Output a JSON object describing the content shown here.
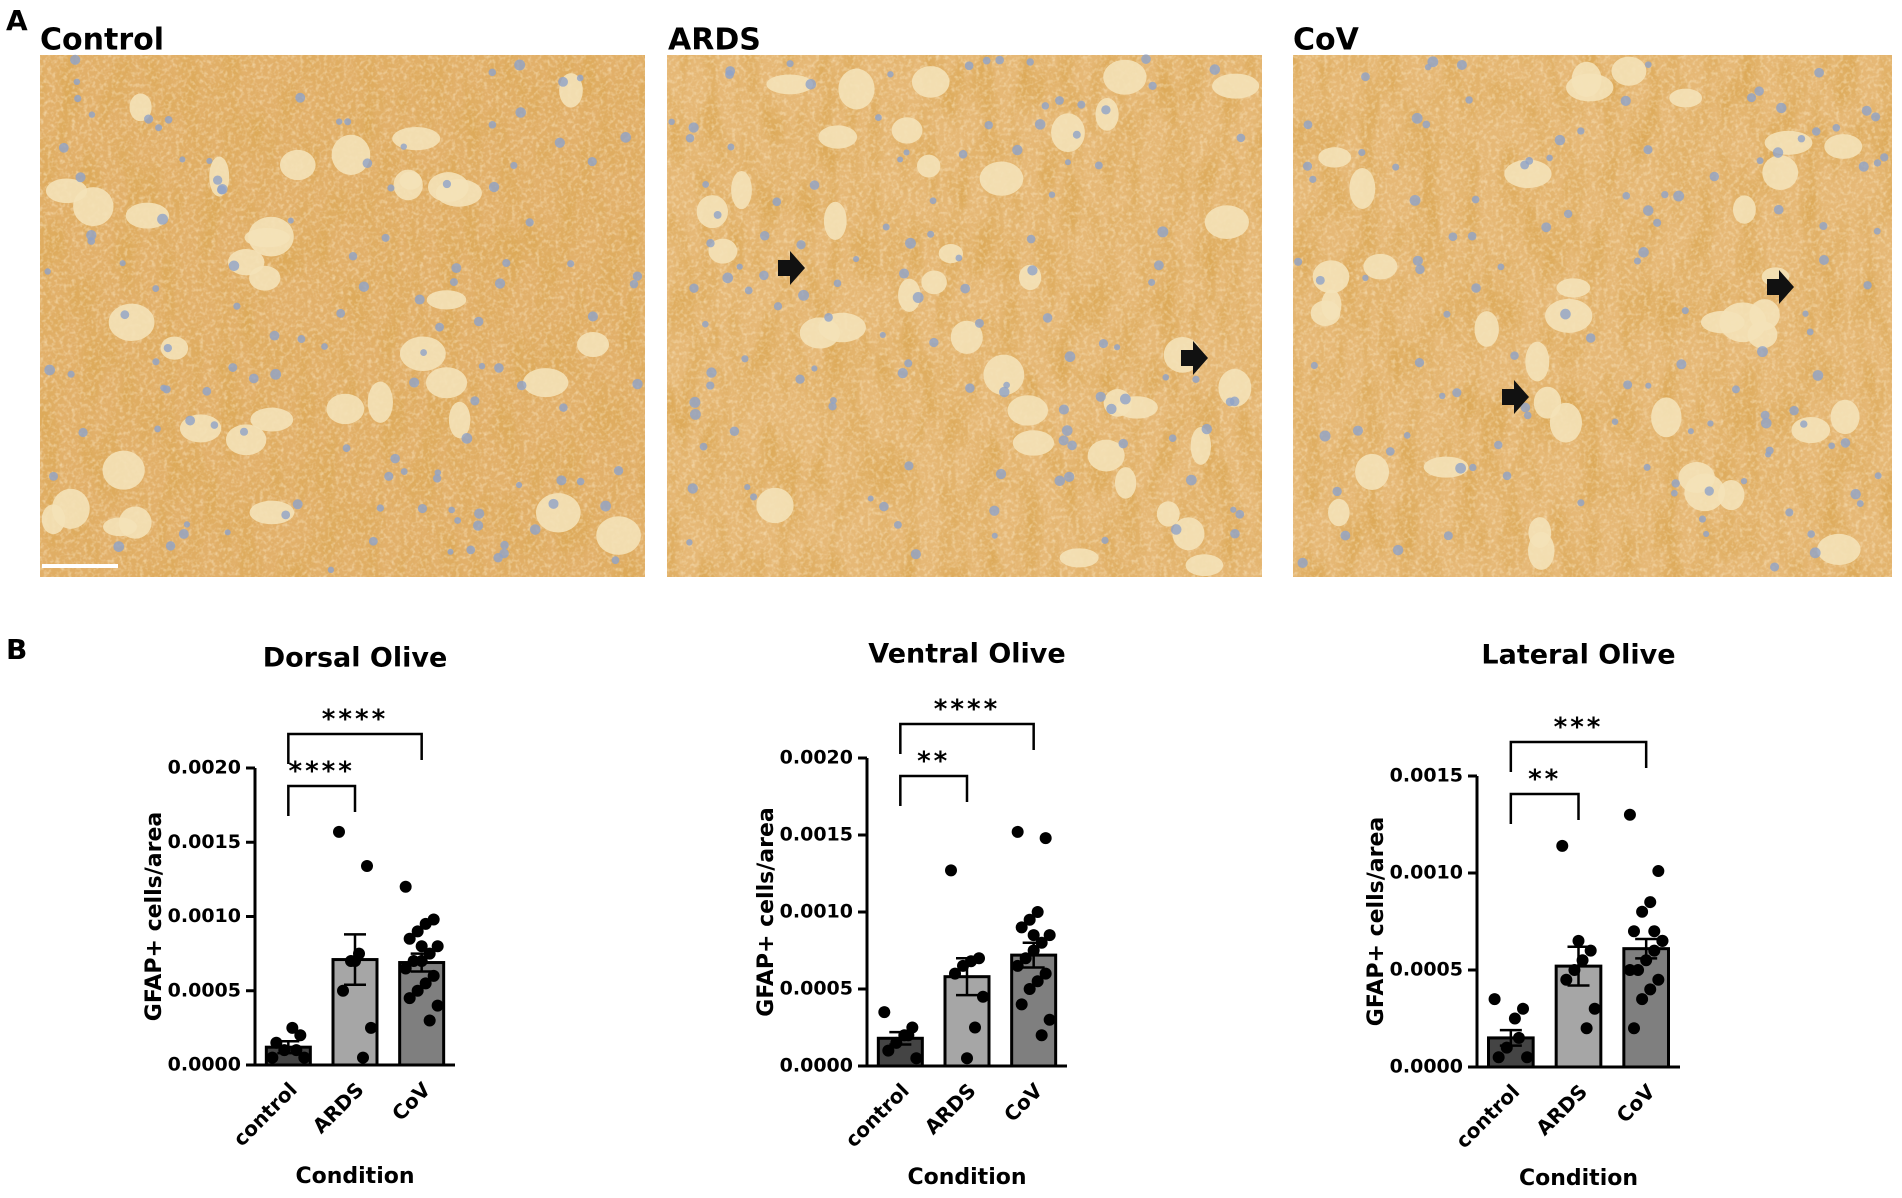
{
  "figure": {
    "panel_a": {
      "label": "A",
      "images": [
        {
          "title": "Control"
        },
        {
          "title": "ARDS"
        },
        {
          "title": "CoV"
        }
      ]
    },
    "panel_b": {
      "label": "B"
    }
  },
  "chart_data": [
    {
      "type": "bar",
      "title": "Dorsal Olive",
      "xlabel": "Condition",
      "ylabel": "GFAP+ cells/area",
      "categories": [
        "control",
        "ARDS",
        "CoV"
      ],
      "values": [
        0.00012,
        0.00071,
        0.00069
      ],
      "errors": [
        4e-05,
        0.00017,
        6e-05
      ],
      "colors": [
        "#444444",
        "#a6a6a6",
        "#7f7f7f"
      ],
      "points": [
        [
          5e-05,
          0.0002,
          0.00025,
          0.0001,
          0.00015,
          5e-05,
          0.0001
        ],
        [
          0.00157,
          0.00134,
          0.00075,
          0.0007,
          0.0005,
          0.00025,
          5e-05,
          0.0007
        ],
        [
          0.0012,
          0.00098,
          0.00095,
          0.0009,
          0.00085,
          0.0008,
          0.00075,
          0.0007,
          0.0007,
          0.00065,
          0.0006,
          0.00055,
          0.0005,
          0.00045,
          0.0004,
          0.0003,
          0.0008
        ]
      ],
      "ylim": [
        0,
        0.002
      ],
      "yticks": [
        {
          "value": 0,
          "label": "0.0000"
        },
        {
          "value": 0.0005,
          "label": "0.0005"
        },
        {
          "value": 0.001,
          "label": "0.0010"
        },
        {
          "value": 0.0015,
          "label": "0.0015"
        },
        {
          "value": 0.002,
          "label": "0.0020"
        }
      ],
      "significance": [
        {
          "pair": [
            "control",
            "ARDS"
          ],
          "label": "****"
        },
        {
          "pair": [
            "control",
            "CoV"
          ],
          "label": "****"
        }
      ]
    },
    {
      "type": "bar",
      "title": "Ventral Olive",
      "xlabel": "Condition",
      "ylabel": "GFAP+ cells/area",
      "categories": [
        "control",
        "ARDS",
        "CoV"
      ],
      "values": [
        0.00018,
        0.00058,
        0.00072
      ],
      "errors": [
        4e-05,
        0.00012,
        8e-05
      ],
      "colors": [
        "#444444",
        "#a6a6a6",
        "#7f7f7f"
      ],
      "points": [
        [
          0.00035,
          0.00025,
          0.0002,
          0.00015,
          0.0001,
          5e-05,
          0.0002
        ],
        [
          0.00127,
          0.0007,
          0.00068,
          0.00065,
          0.0006,
          0.00045,
          0.00025,
          5e-05
        ],
        [
          0.00152,
          0.00148,
          0.001,
          0.00095,
          0.0009,
          0.00085,
          0.0008,
          0.00075,
          0.0007,
          0.00065,
          0.0006,
          0.00055,
          0.0005,
          0.0004,
          0.0003,
          0.0002,
          0.00085
        ]
      ],
      "ylim": [
        0,
        0.002
      ],
      "yticks": [
        {
          "value": 0,
          "label": "0.0000"
        },
        {
          "value": 0.0005,
          "label": "0.0005"
        },
        {
          "value": 0.001,
          "label": "0.0010"
        },
        {
          "value": 0.0015,
          "label": "0.0015"
        },
        {
          "value": 0.002,
          "label": "0.0020"
        }
      ],
      "significance": [
        {
          "pair": [
            "control",
            "ARDS"
          ],
          "label": "**"
        },
        {
          "pair": [
            "control",
            "CoV"
          ],
          "label": "****"
        }
      ]
    },
    {
      "type": "bar",
      "title": "Lateral Olive",
      "xlabel": "Condition",
      "ylabel": "GFAP+ cells/area",
      "categories": [
        "control",
        "ARDS",
        "CoV"
      ],
      "values": [
        0.00015,
        0.00052,
        0.00061
      ],
      "errors": [
        4e-05,
        0.0001,
        5e-05
      ],
      "colors": [
        "#444444",
        "#a6a6a6",
        "#7f7f7f"
      ],
      "points": [
        [
          0.00035,
          0.0003,
          0.00025,
          0.0001,
          5e-05,
          5e-05,
          0.00015
        ],
        [
          0.00114,
          0.0006,
          0.00055,
          0.0005,
          0.00045,
          0.0003,
          0.0002,
          0.00065
        ],
        [
          0.0013,
          0.00101,
          0.00085,
          0.0008,
          0.0007,
          0.00065,
          0.0006,
          0.00055,
          0.0005,
          0.0005,
          0.00045,
          0.0004,
          0.00035,
          0.0002,
          0.00065,
          0.0007
        ]
      ],
      "ylim": [
        0,
        0.0015
      ],
      "yticks": [
        {
          "value": 0,
          "label": "0.0000"
        },
        {
          "value": 0.0005,
          "label": "0.0005"
        },
        {
          "value": 0.001,
          "label": "0.0010"
        },
        {
          "value": 0.0015,
          "label": "0.0015"
        }
      ],
      "significance": [
        {
          "pair": [
            "control",
            "ARDS"
          ],
          "label": "**"
        },
        {
          "pair": [
            "control",
            "CoV"
          ],
          "label": "***"
        }
      ]
    }
  ]
}
